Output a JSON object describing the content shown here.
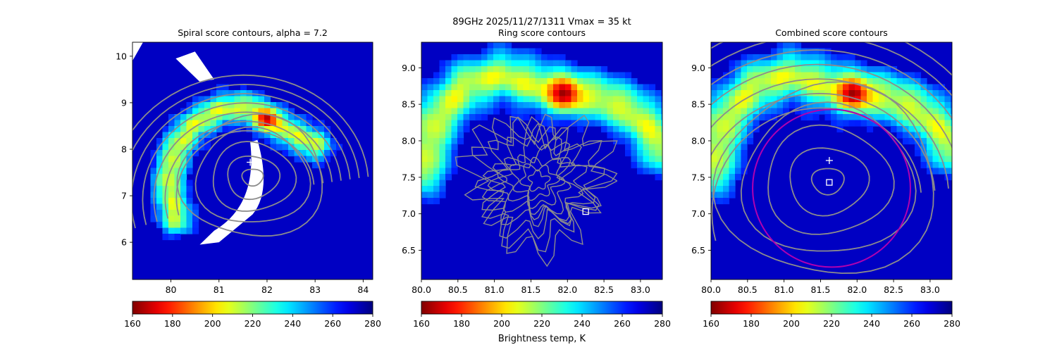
{
  "figure": {
    "suptitle_line1": "89GHz  2025/11/27/1311    Vmax = 35 kt",
    "colorbar_label": "Brightness temp, K"
  },
  "chart_data": [
    {
      "type": "heatmap",
      "title": "Spiral score contours, alpha =  7.2",
      "xlim": [
        79.2,
        84.2
      ],
      "ylim": [
        5.2,
        10.3
      ],
      "xticks": [
        80,
        81,
        82,
        83,
        84
      ],
      "yticks": [
        6,
        7,
        8,
        9,
        10
      ],
      "xtick_labels": [
        "80",
        "81",
        "82",
        "83",
        "84"
      ],
      "ytick_labels": [
        "6",
        "7",
        "8",
        "9",
        "10"
      ],
      "colormap": "jet_r",
      "clim": [
        160,
        280
      ],
      "colorbar_ticks": [
        160,
        180,
        200,
        220,
        240,
        260,
        280
      ],
      "cold_cores": [
        {
          "x": 82.0,
          "y": 8.65,
          "tb": 165
        }
      ],
      "rainband_field": "spiral",
      "marker_plus": {
        "x": 81.65,
        "y": 7.72
      },
      "contour_center": {
        "x": 81.7,
        "y": 7.4
      },
      "grid": false
    },
    {
      "type": "heatmap",
      "title": "Ring score contours",
      "xlim": [
        80.0,
        83.3
      ],
      "ylim": [
        6.1,
        9.35
      ],
      "xticks": [
        80.0,
        80.5,
        81.0,
        81.5,
        82.0,
        82.5,
        83.0
      ],
      "yticks": [
        6.5,
        7.0,
        7.5,
        8.0,
        8.5,
        9.0
      ],
      "xtick_labels": [
        "80.0",
        "80.5",
        "81.0",
        "81.5",
        "82.0",
        "82.5",
        "83.0"
      ],
      "ytick_labels": [
        "6.5",
        "7.0",
        "7.5",
        "8.0",
        "8.5",
        "9.0"
      ],
      "colormap": "jet_r",
      "clim": [
        160,
        280
      ],
      "colorbar_ticks": [
        160,
        180,
        200,
        220,
        240,
        260,
        280
      ],
      "cold_cores": [
        {
          "x": 81.95,
          "y": 8.65,
          "tb": 163
        }
      ],
      "rainband_field": "ring",
      "marker_square": {
        "x": 82.25,
        "y": 7.03
      },
      "contour_center": {
        "x": 81.6,
        "y": 7.45
      },
      "grid": false
    },
    {
      "type": "heatmap",
      "title": "Combined score contours",
      "xlim": [
        80.0,
        83.3
      ],
      "ylim": [
        6.1,
        9.35
      ],
      "xticks": [
        80.0,
        80.5,
        81.0,
        81.5,
        82.0,
        82.5,
        83.0
      ],
      "yticks": [
        6.5,
        7.0,
        7.5,
        8.0,
        8.5,
        9.0
      ],
      "xtick_labels": [
        "80.0",
        "80.5",
        "81.0",
        "81.5",
        "82.0",
        "82.5",
        "83.0"
      ],
      "ytick_labels": [
        "6.5",
        "7.0",
        "7.5",
        "8.0",
        "8.5",
        "9.0"
      ],
      "colormap": "jet_r",
      "clim": [
        160,
        280
      ],
      "colorbar_ticks": [
        160,
        180,
        200,
        220,
        240,
        260,
        280
      ],
      "cold_cores": [
        {
          "x": 81.95,
          "y": 8.65,
          "tb": 163
        }
      ],
      "rainband_field": "ring",
      "marker_plus": {
        "x": 81.62,
        "y": 7.73
      },
      "marker_square": {
        "x": 81.62,
        "y": 7.43
      },
      "fit_circle": {
        "x": 81.65,
        "y": 7.35,
        "radius_deg": 1.08,
        "color": "#b000b0"
      },
      "contour_center": {
        "x": 81.6,
        "y": 7.45
      },
      "grid": false
    }
  ]
}
